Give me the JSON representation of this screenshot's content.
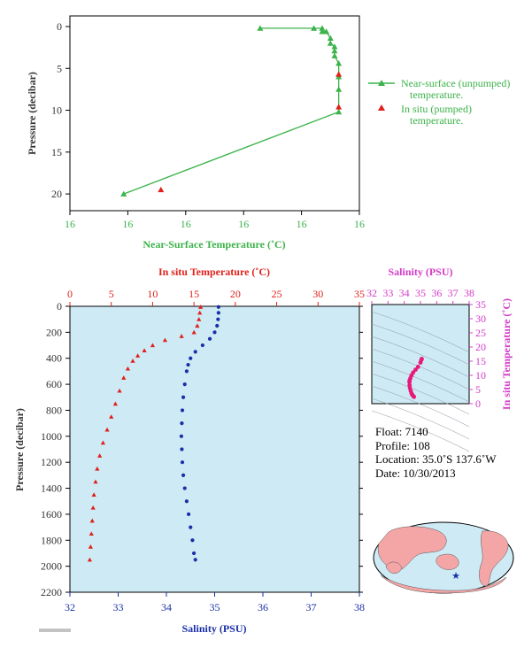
{
  "chart_data": [
    {
      "type": "scatter",
      "name_in_image": "near_surface",
      "xlabel": "Near-Surface Temperature (˚C)",
      "ylabel": "Pressure (decibar)",
      "x_tick_labels": [
        "16",
        "16",
        "16",
        "16",
        "16",
        "16"
      ],
      "y_tick_labels": [
        "0",
        "5",
        "10",
        "15",
        "20"
      ],
      "ylim": [
        0,
        22
      ],
      "legend": [
        {
          "label_line1": "Near-surface (unpumped)",
          "label_line2": "temperature.",
          "color": "#3cb34a",
          "marker": "triangle-line"
        },
        {
          "label_line1": "In situ (pumped)",
          "label_line2": "temperature.",
          "color": "#e0201b",
          "marker": "triangle"
        }
      ],
      "series": [
        {
          "name": "Near-surface (unpumped) temperature.",
          "color": "#3cb34a",
          "x": [
            15.91,
            16.04,
            16.06,
            16.06,
            16.07,
            16.08,
            16.08,
            16.09,
            16.09,
            16.09,
            16.1,
            16.1,
            16.1,
            16.1,
            15.58
          ],
          "y": [
            0.2,
            0.2,
            0.2,
            0.6,
            0.6,
            1.4,
            2.0,
            2.4,
            2.9,
            3.5,
            4.4,
            6.0,
            7.5,
            10.2,
            20.0
          ]
        },
        {
          "name": "In situ (pumped) temperature.",
          "color": "#e0201b",
          "x": [
            16.1,
            16.1,
            15.67
          ],
          "y": [
            5.7,
            9.6,
            19.5
          ]
        }
      ]
    },
    {
      "type": "line",
      "name_in_image": "profile",
      "ylabel": "Pressure (decibar)",
      "top_axis_label": "In situ Temperature (˚C)",
      "bottom_axis_label": "Salinity (PSU)",
      "temp_ticks": [
        0,
        5,
        10,
        15,
        20,
        25,
        30,
        35
      ],
      "sal_ticks": [
        32,
        33,
        34,
        35,
        36,
        37,
        38
      ],
      "pressure_ticks": [
        0,
        200,
        400,
        600,
        800,
        1000,
        1200,
        1400,
        1600,
        1800,
        2000,
        2200
      ],
      "xlim_temp": [
        0,
        35
      ],
      "xlim_sal": [
        32,
        38
      ],
      "ylim": [
        0,
        2200
      ],
      "series": [
        {
          "name": "In situ Temperature",
          "color": "#e0201b",
          "pressure": [
            5,
            50,
            100,
            150,
            200,
            230,
            260,
            300,
            340,
            380,
            420,
            480,
            550,
            650,
            750,
            850,
            950,
            1050,
            1150,
            1250,
            1350,
            1450,
            1550,
            1650,
            1750,
            1850,
            1950
          ],
          "temperature": [
            15.8,
            15.7,
            15.6,
            15.4,
            15.0,
            13.5,
            11.5,
            10.0,
            9.0,
            8.2,
            7.6,
            7.0,
            6.5,
            6.0,
            5.5,
            5.0,
            4.5,
            4.0,
            3.6,
            3.3,
            3.1,
            2.9,
            2.8,
            2.7,
            2.6,
            2.5,
            2.4
          ]
        },
        {
          "name": "Salinity",
          "color": "#1a2fa8",
          "pressure": [
            5,
            50,
            100,
            150,
            200,
            250,
            300,
            350,
            400,
            450,
            500,
            600,
            700,
            800,
            900,
            1000,
            1100,
            1200,
            1300,
            1400,
            1500,
            1600,
            1700,
            1800,
            1900,
            1950
          ],
          "salinity": [
            35.08,
            35.08,
            35.07,
            35.05,
            35.0,
            34.9,
            34.75,
            34.6,
            34.5,
            34.45,
            34.42,
            34.38,
            34.35,
            34.33,
            34.32,
            34.31,
            34.32,
            34.33,
            34.35,
            34.38,
            34.42,
            34.46,
            34.5,
            34.54,
            34.57,
            34.6
          ]
        }
      ]
    },
    {
      "type": "scatter",
      "name_in_image": "ts_diagram",
      "top_axis_label": "Salinity (PSU)",
      "right_axis_label": "In situ Temperature (˚C)",
      "sal_ticks": [
        32,
        33,
        34,
        35,
        36,
        37,
        38
      ],
      "temp_ticks": [
        0,
        5,
        10,
        15,
        20,
        25,
        30,
        35
      ],
      "xlim": [
        32,
        38
      ],
      "ylim": [
        0,
        35
      ],
      "series": [
        {
          "name": "T-S",
          "color": "#e8197a",
          "salinity": [
            34.6,
            34.55,
            34.5,
            34.45,
            34.4,
            34.35,
            34.33,
            34.32,
            34.33,
            34.38,
            34.45,
            34.55,
            34.7,
            34.85,
            35.0,
            35.05,
            35.08
          ],
          "temperature": [
            2.4,
            2.7,
            3.1,
            3.6,
            4.5,
            5.5,
            6.5,
            7.6,
            8.2,
            9.0,
            10.0,
            11.0,
            12.0,
            13.0,
            14.5,
            15.4,
            15.8
          ]
        }
      ]
    }
  ],
  "info": {
    "float": "Float:  7140",
    "profile": "Profile:  108",
    "location": "Location:  35.0˚S  137.6˚W",
    "date": "Date:  10/30/2013"
  },
  "colors": {
    "ocean": "#cdeaf5",
    "land": "#f4a6a6",
    "marker_star": "#1a2fa8",
    "frame": "#000000"
  },
  "map": {
    "marker": "star-icon"
  }
}
